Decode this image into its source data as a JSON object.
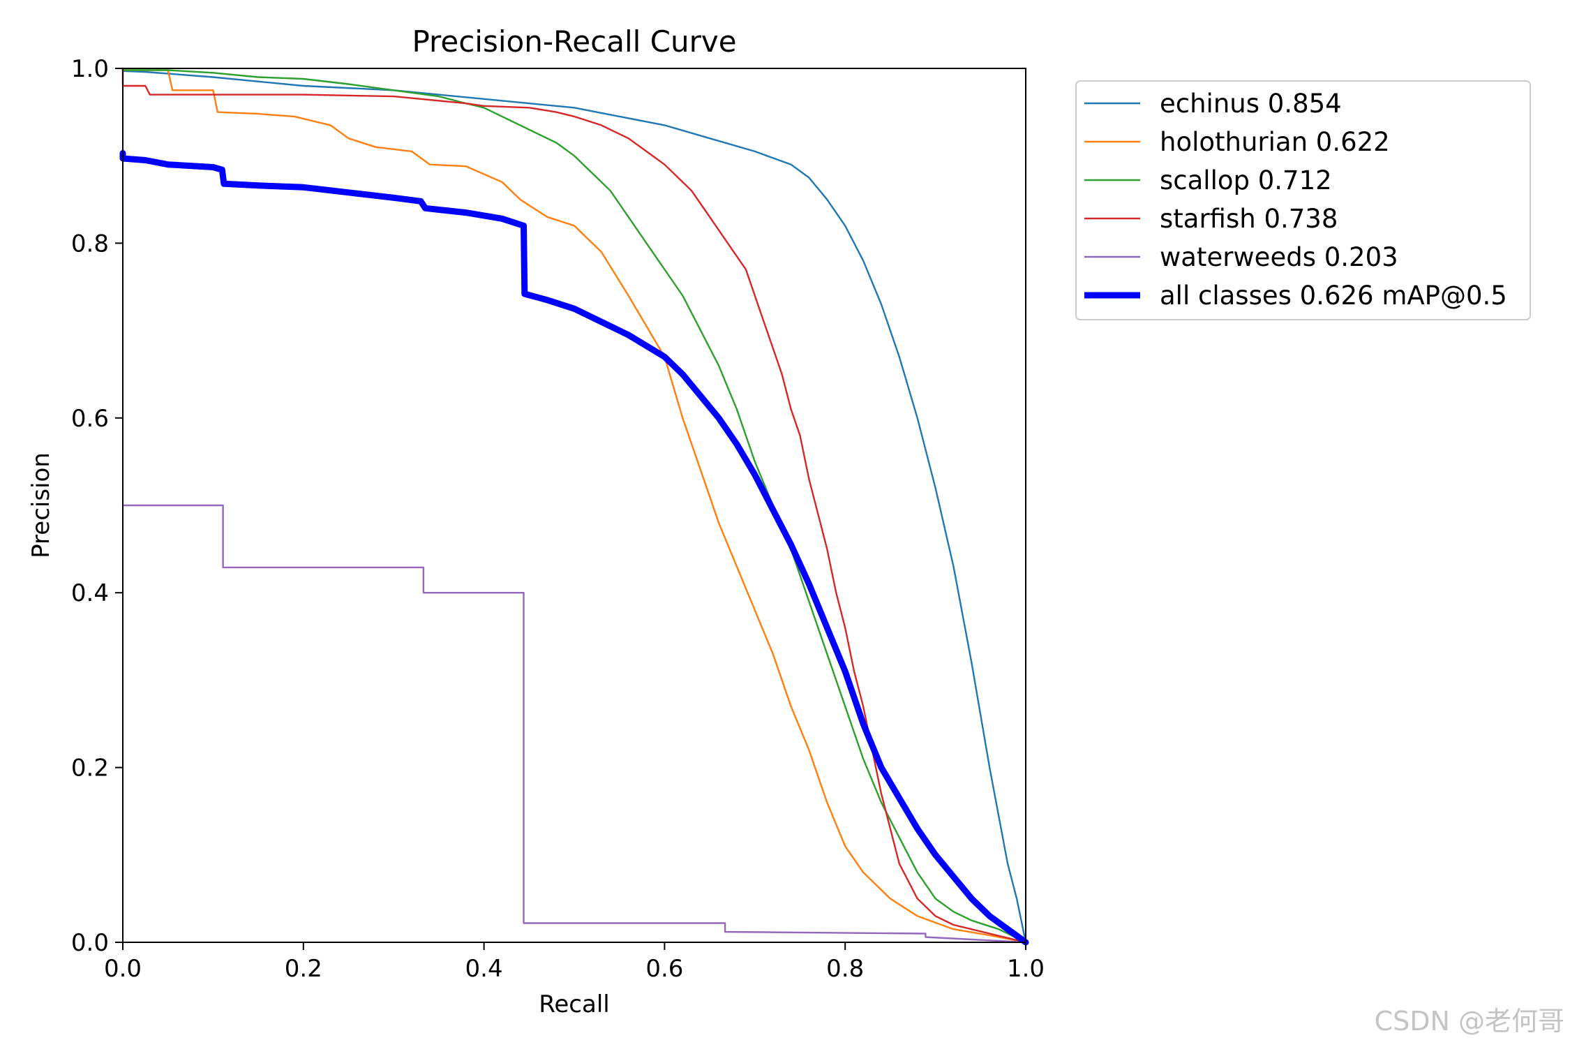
{
  "chart_data": {
    "type": "line",
    "title": "Precision-Recall Curve",
    "xlabel": "Recall",
    "ylabel": "Precision",
    "xlim": [
      0,
      1
    ],
    "ylim": [
      0,
      1
    ],
    "xticks": [
      "0.0",
      "0.2",
      "0.4",
      "0.6",
      "0.8",
      "1.0"
    ],
    "yticks": [
      "0.0",
      "0.2",
      "0.4",
      "0.6",
      "0.8",
      "1.0"
    ],
    "grid": false,
    "legend_position": "outside-top-right",
    "series": [
      {
        "name": "echinus 0.854",
        "color": "#1f77b4",
        "line_width": "thin",
        "x": [
          0.0,
          0.0,
          0.025,
          0.1,
          0.2,
          0.3,
          0.35,
          0.45,
          0.5,
          0.55,
          0.6,
          0.65,
          0.7,
          0.74,
          0.76,
          0.78,
          0.8,
          0.82,
          0.84,
          0.86,
          0.88,
          0.9,
          0.92,
          0.94,
          0.96,
          0.98,
          0.99,
          1.0
        ],
        "y": [
          1.0,
          0.997,
          0.996,
          0.99,
          0.98,
          0.975,
          0.97,
          0.96,
          0.955,
          0.945,
          0.935,
          0.92,
          0.905,
          0.89,
          0.875,
          0.85,
          0.82,
          0.78,
          0.73,
          0.67,
          0.6,
          0.52,
          0.43,
          0.32,
          0.2,
          0.09,
          0.05,
          0.0
        ]
      },
      {
        "name": "holothurian 0.622",
        "color": "#ff7f0e",
        "line_width": "thin",
        "x": [
          0.0,
          0.0,
          0.05,
          0.055,
          0.1,
          0.105,
          0.15,
          0.19,
          0.23,
          0.25,
          0.28,
          0.32,
          0.34,
          0.38,
          0.42,
          0.44,
          0.47,
          0.5,
          0.53,
          0.56,
          0.6,
          0.62,
          0.64,
          0.66,
          0.68,
          0.7,
          0.72,
          0.74,
          0.76,
          0.78,
          0.8,
          0.82,
          0.85,
          0.88,
          0.92,
          0.96,
          1.0
        ],
        "y": [
          1.0,
          0.998,
          0.998,
          0.975,
          0.975,
          0.95,
          0.948,
          0.945,
          0.935,
          0.92,
          0.91,
          0.905,
          0.89,
          0.888,
          0.87,
          0.85,
          0.83,
          0.82,
          0.79,
          0.74,
          0.67,
          0.6,
          0.54,
          0.48,
          0.43,
          0.38,
          0.33,
          0.27,
          0.22,
          0.16,
          0.11,
          0.08,
          0.05,
          0.03,
          0.015,
          0.008,
          0.0
        ]
      },
      {
        "name": "scallop 0.712",
        "color": "#2ca02c",
        "line_width": "thin",
        "x": [
          0.0,
          0.0,
          0.05,
          0.1,
          0.15,
          0.2,
          0.25,
          0.3,
          0.35,
          0.38,
          0.4,
          0.42,
          0.44,
          0.46,
          0.48,
          0.5,
          0.52,
          0.54,
          0.56,
          0.58,
          0.6,
          0.62,
          0.64,
          0.66,
          0.68,
          0.7,
          0.72,
          0.74,
          0.76,
          0.78,
          0.8,
          0.82,
          0.84,
          0.86,
          0.88,
          0.9,
          0.92,
          0.94,
          0.97,
          1.0
        ],
        "y": [
          1.0,
          0.998,
          0.998,
          0.995,
          0.99,
          0.988,
          0.982,
          0.975,
          0.968,
          0.96,
          0.955,
          0.945,
          0.935,
          0.925,
          0.915,
          0.9,
          0.88,
          0.86,
          0.83,
          0.8,
          0.77,
          0.74,
          0.7,
          0.66,
          0.61,
          0.55,
          0.5,
          0.45,
          0.39,
          0.33,
          0.27,
          0.21,
          0.16,
          0.12,
          0.08,
          0.05,
          0.035,
          0.025,
          0.015,
          0.0
        ]
      },
      {
        "name": "starfish 0.738",
        "color": "#d62728",
        "line_width": "thin",
        "x": [
          0.0,
          0.0,
          0.025,
          0.03,
          0.2,
          0.3,
          0.33,
          0.38,
          0.4,
          0.45,
          0.48,
          0.5,
          0.53,
          0.56,
          0.58,
          0.6,
          0.63,
          0.65,
          0.67,
          0.69,
          0.7,
          0.71,
          0.72,
          0.73,
          0.74,
          0.75,
          0.76,
          0.77,
          0.78,
          0.79,
          0.8,
          0.81,
          0.82,
          0.83,
          0.84,
          0.85,
          0.86,
          0.88,
          0.9,
          0.92,
          0.96,
          1.0
        ],
        "y": [
          1.0,
          0.98,
          0.98,
          0.97,
          0.97,
          0.968,
          0.965,
          0.96,
          0.957,
          0.955,
          0.95,
          0.945,
          0.935,
          0.92,
          0.905,
          0.89,
          0.86,
          0.83,
          0.8,
          0.77,
          0.74,
          0.71,
          0.68,
          0.65,
          0.61,
          0.58,
          0.53,
          0.49,
          0.45,
          0.4,
          0.36,
          0.31,
          0.27,
          0.22,
          0.17,
          0.13,
          0.09,
          0.05,
          0.03,
          0.02,
          0.01,
          0.0
        ]
      },
      {
        "name": "waterweeds 0.203",
        "color": "#9467bd",
        "line_width": "thin",
        "x": [
          0.0,
          0.111,
          0.111,
          0.333,
          0.333,
          0.444,
          0.444,
          0.667,
          0.667,
          0.889,
          0.889,
          1.0
        ],
        "y": [
          0.5,
          0.5,
          0.429,
          0.429,
          0.4,
          0.4,
          0.022,
          0.022,
          0.012,
          0.01,
          0.006,
          0.0
        ]
      },
      {
        "name": "all classes 0.626 mAP@0.5",
        "color": "#0000ff",
        "line_width": "thick",
        "x": [
          0.0,
          0.0,
          0.025,
          0.05,
          0.1,
          0.11,
          0.112,
          0.15,
          0.2,
          0.25,
          0.3,
          0.33,
          0.335,
          0.38,
          0.42,
          0.444,
          0.445,
          0.47,
          0.5,
          0.53,
          0.56,
          0.6,
          0.62,
          0.64,
          0.66,
          0.68,
          0.7,
          0.72,
          0.74,
          0.76,
          0.78,
          0.8,
          0.82,
          0.84,
          0.86,
          0.88,
          0.9,
          0.92,
          0.94,
          0.96,
          0.98,
          1.0
        ],
        "y": [
          0.903,
          0.897,
          0.895,
          0.89,
          0.887,
          0.884,
          0.868,
          0.866,
          0.864,
          0.858,
          0.852,
          0.848,
          0.84,
          0.835,
          0.828,
          0.82,
          0.742,
          0.735,
          0.725,
          0.71,
          0.695,
          0.67,
          0.65,
          0.625,
          0.6,
          0.57,
          0.535,
          0.495,
          0.455,
          0.41,
          0.36,
          0.31,
          0.25,
          0.2,
          0.165,
          0.13,
          0.1,
          0.075,
          0.05,
          0.03,
          0.015,
          0.0
        ]
      }
    ]
  },
  "watermark": "CSDN @老何哥"
}
